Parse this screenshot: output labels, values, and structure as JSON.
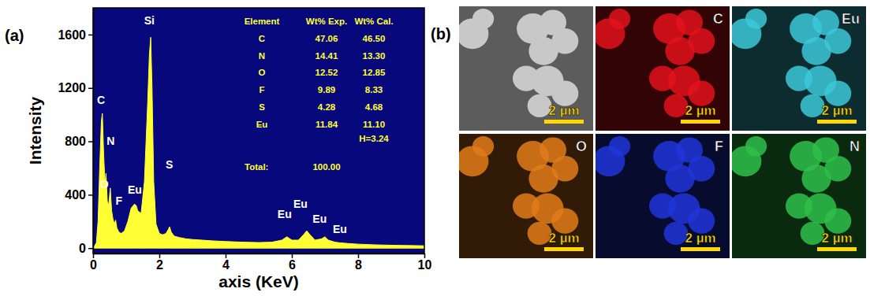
{
  "chart_data": {
    "type": "area",
    "panel_label": "(a)",
    "x_label": "axis (KeV)",
    "y_label": "Intensity",
    "color": "#ffff33",
    "xlim": [
      0,
      10
    ],
    "xticks": [
      0,
      2,
      4,
      6,
      8,
      10
    ],
    "ylim": [
      -40,
      1800
    ],
    "yticks": [
      0,
      400,
      800,
      1200,
      1600
    ],
    "x": [
      0,
      0.1,
      0.15,
      0.2,
      0.25,
      0.28,
      0.32,
      0.36,
      0.39,
      0.43,
      0.47,
      0.52,
      0.56,
      0.6,
      0.64,
      0.68,
      0.72,
      0.78,
      0.85,
      0.95,
      1.05,
      1.15,
      1.25,
      1.3,
      1.35,
      1.45,
      1.55,
      1.65,
      1.7,
      1.74,
      1.78,
      1.83,
      1.9,
      2.0,
      2.1,
      2.2,
      2.27,
      2.31,
      2.36,
      2.45,
      2.6,
      2.8,
      3.0,
      3.3,
      3.6,
      4.0,
      4.5,
      5.0,
      5.4,
      5.7,
      5.85,
      6.0,
      6.2,
      6.35,
      6.45,
      6.55,
      6.7,
      6.9,
      7.0,
      7.1,
      7.3,
      7.45,
      7.55,
      7.7,
      8.0,
      8.5,
      9.0,
      9.5,
      10
    ],
    "values": [
      0,
      40,
      200,
      600,
      950,
      1010,
      700,
      480,
      560,
      350,
      320,
      450,
      280,
      220,
      180,
      210,
      150,
      120,
      110,
      130,
      200,
      300,
      330,
      320,
      280,
      260,
      500,
      1100,
      1450,
      1580,
      1200,
      500,
      180,
      110,
      100,
      110,
      140,
      160,
      120,
      90,
      80,
      70,
      65,
      60,
      55,
      50,
      45,
      42,
      45,
      60,
      85,
      60,
      60,
      100,
      130,
      100,
      60,
      70,
      85,
      60,
      45,
      40,
      38,
      35,
      30,
      25,
      22,
      20,
      18
    ],
    "annotations": [
      {
        "text": "C",
        "x": 0.24,
        "y": 1105
      },
      {
        "text": "N",
        "x": 0.53,
        "y": 795
      },
      {
        "text": "O",
        "x": 0.34,
        "y": 470
      },
      {
        "text": "F",
        "x": 0.78,
        "y": 346
      },
      {
        "text": "Eu",
        "x": 1.26,
        "y": 430
      },
      {
        "text": "Si",
        "x": 1.7,
        "y": 1700
      },
      {
        "text": "S",
        "x": 2.3,
        "y": 620
      },
      {
        "text": "Eu",
        "x": 5.78,
        "y": 250
      },
      {
        "text": "Eu",
        "x": 6.26,
        "y": 322
      },
      {
        "text": "Eu",
        "x": 6.84,
        "y": 210
      },
      {
        "text": "Eu",
        "x": 7.45,
        "y": 137
      }
    ],
    "table": {
      "columns": [
        "Element",
        "Wt% Exp.",
        "Wt% Cal."
      ],
      "rows": [
        [
          "C",
          "47.06",
          "46.50"
        ],
        [
          "N",
          "14.41",
          "13.30"
        ],
        [
          "O",
          "12.52",
          "12.85"
        ],
        [
          "F",
          "9.89",
          "8.33"
        ],
        [
          "S",
          "4.28",
          "4.68"
        ],
        [
          "Eu",
          "11.84",
          "11.10"
        ]
      ],
      "note": "H=3.24",
      "total": [
        "Total:",
        "100.00"
      ]
    }
  },
  "figure_b": {
    "panel_label": "(b)",
    "scale_bar": "2 µm",
    "panels": [
      {
        "color": "#c8c8c8"
      },
      {
        "label": "C",
        "color": "#e3121c"
      },
      {
        "label": "Eu",
        "color": "#3cc8d8"
      },
      {
        "label": "O",
        "color": "#e07b1a"
      },
      {
        "label": "F",
        "color": "#1f35d8"
      },
      {
        "label": "N",
        "color": "#2fbf4a"
      }
    ]
  }
}
